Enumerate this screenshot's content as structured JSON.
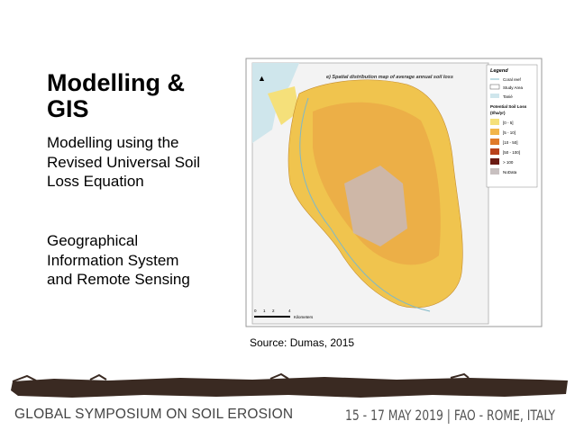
{
  "slide": {
    "title": "Modelling & GIS",
    "bullets": [
      [
        "Modelling using the",
        "Revised Universal Soil",
        "Loss Equation"
      ],
      [
        "Geographical",
        "Information System",
        "and Remote Sensing"
      ]
    ],
    "source": "Source: Dumas, 2015"
  },
  "map": {
    "title": "e) Spatial distribution map of average annual soil loss",
    "legend": {
      "title": "Legend",
      "items": [
        "Coral reef",
        "Study Area",
        "Tanié"
      ],
      "subtitle": "Potential Soil Loss",
      "unit": "(t/ha/yr)",
      "classes": [
        "[0 - 5]",
        "]5 - 10]",
        "]10 - 50]",
        "]50 - 100]",
        "> 100",
        "NoData"
      ]
    },
    "scale": [
      "0",
      "1",
      "2",
      "4",
      "Kilometers"
    ]
  },
  "footer": {
    "left": "GLOBAL SYMPOSIUM ON SOIL EROSION",
    "right": "15 - 17 MAY 2019 | FAO - ROME, ITALY"
  }
}
